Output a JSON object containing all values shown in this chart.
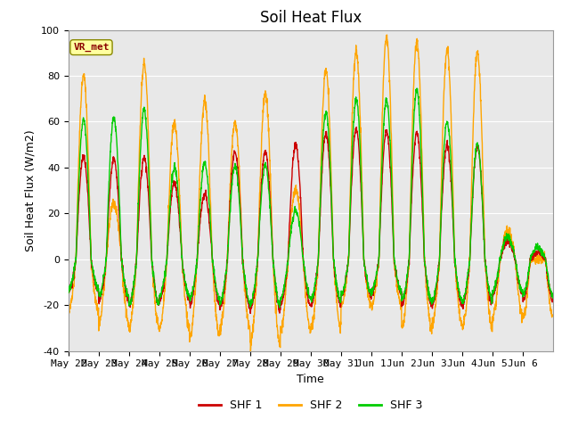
{
  "title": "Soil Heat Flux",
  "xlabel": "Time",
  "ylabel": "Soil Heat Flux (W/m2)",
  "ylim": [
    -40,
    100
  ],
  "yticks": [
    -40,
    -20,
    0,
    20,
    40,
    60,
    80,
    100
  ],
  "x_labels": [
    "May 22",
    "May 23",
    "May 24",
    "May 25",
    "May 26",
    "May 27",
    "May 28",
    "May 29",
    "May 30",
    "May 31",
    "Jun 1",
    "Jun 2",
    "Jun 3",
    "Jun 4",
    "Jun 5",
    "Jun 6"
  ],
  "annotation": "VR_met",
  "annotation_color": "#8B0000",
  "annotation_bg": "#FFFFA0",
  "series_colors": [
    "#CC0000",
    "#FFA500",
    "#00CC00"
  ],
  "series_labels": [
    "SHF 1",
    "SHF 2",
    "SHF 3"
  ],
  "n_days": 16,
  "plot_bg": "#E8E8E8",
  "grid_color": "#FFFFFF",
  "title_fontsize": 12,
  "label_fontsize": 9,
  "tick_fontsize": 8,
  "linewidth": 1.0
}
